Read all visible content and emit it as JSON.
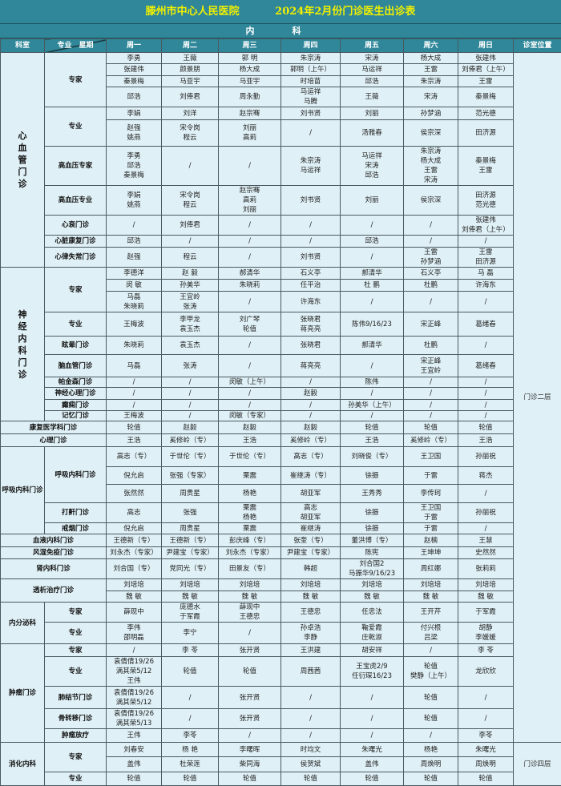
{
  "title": {
    "hospital": "滕州市中心人民医院",
    "schedule": "2024年2月份门诊医生出诊表"
  },
  "section_title": "内　科",
  "header": {
    "dept": "科室",
    "diag": "专业　星期",
    "days": [
      "周一",
      "周二",
      "周三",
      "周四",
      "周五",
      "周六",
      "周日"
    ],
    "location": "诊室位置"
  },
  "colors": {
    "band": "#2f8799",
    "title_text": "#f2f000",
    "cell": "#dff0f6"
  },
  "sections": [
    {
      "dept": "心\n血\n管\n门\n诊",
      "vertical": true,
      "location": "门诊二层",
      "subs": [
        {
          "name": "专家",
          "rows": [
            [
              "李勇",
              "王薇",
              "郭 明",
              "朱宗涛",
              "宋涛",
              "杨大成",
              "张建伟"
            ],
            [
              "张建伟",
              "颜景朋",
              "杨大成",
              "郭明（上午）",
              "马运祥",
              "王雷",
              "刘俸君（上午）"
            ],
            [
              "秦景梅",
              "马亚宇",
              "马亚宇",
              "时培苗",
              "邱浩",
              "朱宗涛",
              "王雷"
            ],
            [
              "邱浩",
              "刘俸君",
              "周永勤",
              "马运祥\n马腾",
              "王薇",
              "宋涛",
              "秦景梅"
            ]
          ]
        },
        {
          "name": "专业",
          "rows": [
            [
              "李娟",
              "刘洋",
              "赵宗骞",
              "刘书贤",
              "刘丽",
              "孙梦涵",
              "范光德"
            ],
            [
              "赵强\n姚燕",
              "宋令岗\n程云",
              "刘丽\n高莉",
              "/",
              "汤雅春",
              "侯宗深",
              "田济源"
            ]
          ]
        },
        {
          "name": "高血压专家",
          "rows": [
            [
              "李勇\n邱浩\n秦景梅",
              "/",
              "/",
              "朱宗涛\n马运祥",
              "马运祥\n宋涛\n邱浩",
              "朱宗涛\n杨大成\n王雷\n宋涛",
              "秦景梅\n王雷"
            ]
          ]
        },
        {
          "name": "高血压专业",
          "rows": [
            [
              "李娟\n姚燕",
              "宋令岗\n程云",
              "赵宗骞\n高莉\n刘丽",
              "刘书贤",
              "刘丽",
              "侯宗深",
              "田济源\n范光德"
            ]
          ]
        },
        {
          "name": "心衰门诊",
          "rows": [
            [
              "/",
              "刘俸君",
              "/",
              "/",
              "/",
              "/",
              "张建伟\n刘俸君（上午）"
            ]
          ]
        },
        {
          "name": "心脏康复门诊",
          "rows": [
            [
              "邱浩",
              "/",
              "/",
              "/",
              "邱浩",
              "/",
              "/"
            ]
          ]
        },
        {
          "name": "心律失常门诊",
          "rows": [
            [
              "赵强",
              "程云",
              "/",
              "刘书贤",
              "/",
              "王雷\n孙梦涵",
              "王雷\n田济源"
            ]
          ]
        }
      ]
    },
    {
      "dept": "神\n经\n内\n科\n门\n诊",
      "vertical": true,
      "location": "门诊二层",
      "subs": [
        {
          "name": "专家",
          "rows": [
            [
              "李德洋",
              "赵 毅",
              "郝清华",
              "石义亭",
              "郝清华",
              "石义亭",
              "马 磊"
            ],
            [
              "闵 敏",
              "孙美华",
              "朱晓莉",
              "任平治",
              "杜 鹏",
              "杜鹏",
              "许海东"
            ],
            [
              "马磊\n朱晓莉",
              "王宜岭\n张涛",
              "/",
              "许海东",
              "/",
              "/",
              "/"
            ]
          ]
        },
        {
          "name": "专业",
          "rows": [
            [
              "王梅波",
              "李甲龙\n袁玉杰",
              "刘广琴\n轮值",
              "张晓君\n蒋亮亮",
              "陈伟9/16/23",
              "宋正峰",
              "葛绪春"
            ]
          ]
        },
        {
          "name": "眩晕门诊",
          "rows": [
            [
              "朱晓莉",
              "袁玉杰",
              "/",
              "张晓君",
              "郝清华",
              "杜鹏",
              "/"
            ]
          ]
        },
        {
          "name": "脑血管门诊",
          "rows": [
            [
              "马磊",
              "张涛",
              "/",
              "蒋亮亮",
              "/",
              "宋正峰\n王宜岭",
              "葛绪春"
            ]
          ]
        },
        {
          "name": "帕金森门诊",
          "rows": [
            [
              "/",
              "/",
              "闵敏（上午）",
              "/",
              "陈伟",
              "/",
              "/"
            ]
          ]
        },
        {
          "name": "神经心理门诊",
          "rows": [
            [
              "/",
              "/",
              "/",
              "赵毅",
              "/",
              "/",
              "/"
            ]
          ]
        },
        {
          "name": "癫痫门诊",
          "rows": [
            [
              "/",
              "/",
              "/",
              "/",
              "孙美华（上午）",
              "/",
              "/"
            ]
          ]
        },
        {
          "name": "记忆门诊",
          "rows": [
            [
              "王梅波",
              "/",
              "闵敏（专家）",
              "/",
              "/",
              "/",
              "/"
            ]
          ]
        }
      ]
    },
    {
      "dept": "康复医学科门诊",
      "location": "门诊二层",
      "subs": [
        {
          "name": null,
          "rows": [
            [
              "轮值",
              "赵毅",
              "赵毅",
              "赵毅",
              "轮值",
              "轮值",
              "轮值"
            ]
          ]
        }
      ]
    },
    {
      "dept": "心理门诊",
      "location": "门诊二层",
      "subs": [
        {
          "name": null,
          "rows": [
            [
              "王浩",
              "奚修岭（专）",
              "王浩",
              "奚修岭（专）",
              "王浩",
              "奚修岭（专）",
              "王浩"
            ]
          ]
        }
      ]
    },
    {
      "dept": "呼吸内科门诊",
      "location": "门诊二层",
      "subs": [
        {
          "name": "呼吸内科门诊",
          "rows": [
            [
              "高志（专）",
              "于世伦（专）",
              "于世伦（专）",
              "高志（专）",
              "刘晓俊（专）",
              "王卫国",
              "孙丽祝"
            ],
            [
              "倪允启",
              "张强（专家）",
              "栗震",
              "崔继涛（专）",
              "徐振",
              "于雷",
              "蒋杰"
            ],
            [
              "张然然",
              "周贵星",
              "杨艳",
              "胡亚军",
              "王秀秀",
              "李传珂",
              "/"
            ]
          ]
        },
        {
          "name": "打鼾门诊",
          "rows": [
            [
              "高志",
              "张强",
              "栗震\n杨艳",
              "高志\n胡亚军",
              "徐振",
              "王卫国\n于雷",
              "孙丽祝"
            ]
          ]
        },
        {
          "name": "戒烟门诊",
          "rows": [
            [
              "倪允启",
              "周贵星",
              "栗震",
              "崔继涛",
              "徐振",
              "于雷",
              "/"
            ]
          ]
        }
      ]
    },
    {
      "dept": "血液内科门诊",
      "location": "门诊二层",
      "subs": [
        {
          "name": null,
          "rows": [
            [
              "王德新（专）",
              "王德新（专）",
              "彭庆峰（专）",
              "张奎（专）",
              "董洪博（专）",
              "赵楠",
              "王慧"
            ]
          ]
        }
      ]
    },
    {
      "dept": "风湿免疫门诊",
      "location": "门诊二层",
      "subs": [
        {
          "name": null,
          "rows": [
            [
              "刘永杰（专家）",
              "尹建宝（专家）",
              "刘永杰（专家）",
              "尹建宝（专家）",
              "陈宪",
              "王坤坤",
              "史然然"
            ]
          ]
        }
      ]
    },
    {
      "dept": "肾内科门诊",
      "location": "门诊二层",
      "subs": [
        {
          "name": null,
          "rows": [
            [
              "刘合国（专）",
              "党同光（专）",
              "田景友（专）",
              "韩超",
              "刘合国2\n马振华9/16/23",
              "周红娜",
              "张莉莉"
            ]
          ]
        }
      ]
    },
    {
      "dept": "透析治疗门诊",
      "location": "门诊二层",
      "subs": [
        {
          "name": null,
          "rows": [
            [
              "刘培培",
              "刘培培",
              "刘培培",
              "刘培培",
              "刘培培",
              "刘培培",
              "刘培培"
            ],
            [
              "魏 敏",
              "魏 敏",
              "魏 敏",
              "魏 敏",
              "魏 敏",
              "魏 敏",
              "魏 敏"
            ]
          ]
        }
      ]
    },
    {
      "dept": "内分泌科",
      "location": "门诊二层",
      "subs": [
        {
          "name": "专家",
          "rows": [
            [
              "薛现中",
              "庞德水\n于军霞",
              "薛现中\n王德忠",
              "王德忠",
              "任忠法",
              "王开芹",
              "于军霞"
            ]
          ]
        },
        {
          "name": "专业",
          "rows": [
            [
              "李伟\n邵明磊",
              "李宁",
              "/",
              "孙卓浩\n李静",
              "鞠爱霞\n庄乾淑",
              "付兴根\n吕梁",
              "胡静\n李媛媛"
            ]
          ]
        }
      ]
    },
    {
      "dept": "肿瘤门诊",
      "location": "门诊二层",
      "subs": [
        {
          "name": "专家",
          "rows": [
            [
              "/",
              "李 苓",
              "张开贤",
              "王洪建",
              "胡安祥",
              "/",
              "李 苓"
            ]
          ]
        },
        {
          "name": "专业",
          "rows": [
            [
              "袁倩倩19/26\n满其荣5/12\n王伟",
              "轮值",
              "轮值",
              "周茜茜",
              "王宝虎2/9\n任衍琛16/23",
              "轮值\n樊静（上午）",
              "龙欣欣"
            ]
          ]
        },
        {
          "name": "肺结节门诊",
          "rows": [
            [
              "袁倩倩19/26\n满其荣5/12",
              "/",
              "张开贤",
              "/",
              "/",
              "轮值",
              "/"
            ]
          ]
        },
        {
          "name": "骨转移门诊",
          "rows": [
            [
              "袁倩倩19/26\n满其荣5/13",
              "/",
              "张开贤",
              "/",
              "/",
              "轮值",
              "/"
            ]
          ]
        },
        {
          "name": "肿瘤放疗",
          "rows": [
            [
              "王伟",
              "李苓",
              "/",
              "/",
              "/",
              "/",
              "李苓"
            ]
          ]
        }
      ]
    },
    {
      "dept": "消化内科",
      "location": "门诊四层",
      "subs": [
        {
          "name": "专家",
          "rows": [
            [
              "刘春安",
              "杨 艳",
              "李曙晖",
              "时均文",
              "朱曙光",
              "杨艳",
              "朱曙光"
            ],
            [
              "盖伟",
              "杜荣莲",
              "柴同海",
              "侯贺斌",
              "盖伟",
              "周焕明",
              "周焕明"
            ]
          ]
        },
        {
          "name": "专业",
          "rows": [
            [
              "轮值",
              "轮值",
              "轮值",
              "轮值",
              "轮值",
              "轮值",
              "轮值"
            ]
          ]
        }
      ]
    }
  ]
}
